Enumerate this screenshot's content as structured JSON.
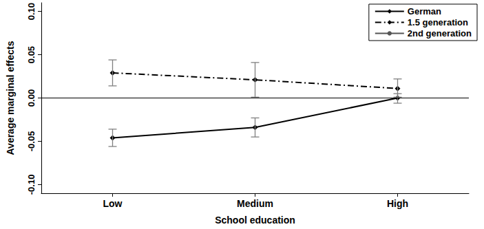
{
  "chart_data": {
    "type": "line",
    "x_label": "School education",
    "y_label": "Average marginal effects",
    "categories": [
      "Low",
      "Medium",
      "High"
    ],
    "ylim": [
      -0.11,
      0.11
    ],
    "yticks": [
      {
        "value": -0.1,
        "label": "-0.10"
      },
      {
        "value": -0.05,
        "label": "-0.05"
      },
      {
        "value": 0,
        "label": "0.00"
      },
      {
        "value": 0.05,
        "label": "0.05"
      },
      {
        "value": 0.1,
        "label": "0.10"
      }
    ],
    "grid": false,
    "legend": "top-right",
    "series": [
      {
        "name": "German",
        "color": "#000000",
        "line_style": "solid",
        "marker": "diamond",
        "values": [
          -0.046,
          -0.034,
          0.0
        ],
        "ci": [
          [
            -0.056,
            -0.036
          ],
          [
            -0.045,
            -0.023
          ],
          [
            -0.006,
            0.005
          ]
        ]
      },
      {
        "name": "1.5 generation",
        "color": "#000000",
        "line_style": "dashdot",
        "marker": "diamond",
        "values": [
          0.029,
          0.021,
          0.011
        ],
        "ci": [
          [
            0.014,
            0.044
          ],
          [
            0.001,
            0.041
          ],
          [
            0.001,
            0.022
          ]
        ]
      },
      {
        "name": "2nd generation",
        "color": "#555555",
        "line_style": "solid",
        "values": [
          0,
          0,
          0
        ]
      }
    ]
  }
}
